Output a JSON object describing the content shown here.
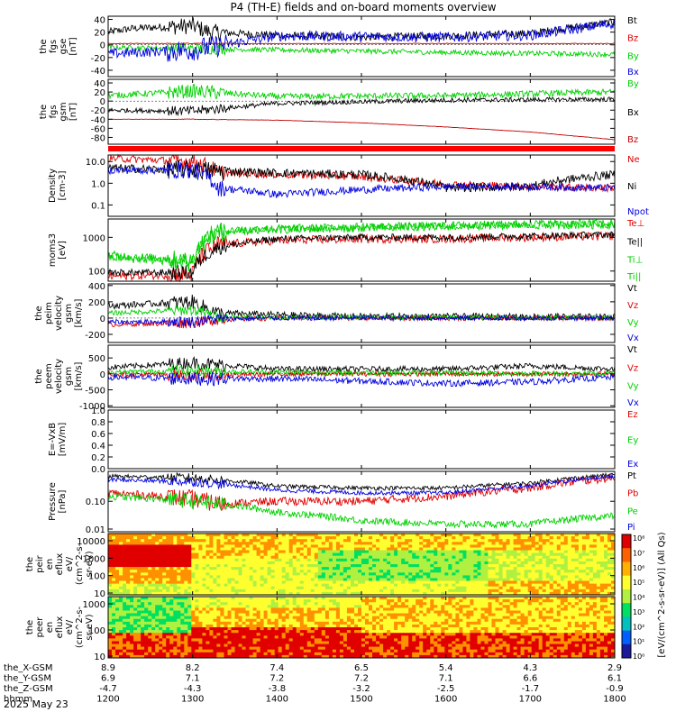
{
  "title": "P4 (TH-E) fields and on-board moments overview",
  "chart_data": [
    {
      "type": "line",
      "id": "fgs_gse",
      "ylabel": [
        "the",
        "fgs",
        "gse",
        "[nT]"
      ],
      "yticks": [
        "40",
        "20",
        "0",
        "-20",
        "-40"
      ],
      "ylim": [
        -50,
        45
      ],
      "legend": [
        {
          "name": "Bt",
          "color": "#000000"
        },
        {
          "name": "Bz",
          "color": "#e00000"
        },
        {
          "name": "By",
          "color": "#00d000"
        },
        {
          "name": "Bx",
          "color": "#0000e0"
        }
      ],
      "series": [
        {
          "name": "Bt",
          "x": [
            1200,
            1230,
            1300,
            1320,
            1400,
            1500,
            1600,
            1700,
            1730,
            1800
          ],
          "y": [
            20,
            26,
            30,
            20,
            15,
            12,
            14,
            18,
            24,
            36
          ],
          "noise": 6
        },
        {
          "name": "Bz",
          "x": [
            1200,
            1400,
            1600,
            1800
          ],
          "y": [
            2,
            2,
            2,
            2
          ],
          "noise": 0.5
        },
        {
          "name": "By",
          "x": [
            1200,
            1300,
            1400,
            1600,
            1800
          ],
          "y": [
            -4,
            -6,
            -8,
            -12,
            -15
          ],
          "noise": 4
        },
        {
          "name": "Bx",
          "x": [
            1200,
            1300,
            1400,
            1600,
            1700,
            1800
          ],
          "y": [
            -14,
            -8,
            14,
            12,
            15,
            34
          ],
          "noise": 8
        }
      ]
    },
    {
      "type": "line",
      "id": "fgs_gsm",
      "ylabel": [
        "the",
        "fgs",
        "gsm",
        "[nT]"
      ],
      "yticks": [
        "40",
        "20",
        "0",
        "-20",
        "-40",
        "-60",
        "-80"
      ],
      "ylim": [
        -95,
        48
      ],
      "legend": [
        {
          "name": "By",
          "color": "#00d000"
        },
        {
          "name": "Bx",
          "color": "#000000"
        },
        {
          "name": "Bz",
          "color": "#c00000"
        }
      ],
      "series": [
        {
          "name": "By",
          "x": [
            1200,
            1300,
            1400,
            1600,
            1800
          ],
          "y": [
            12,
            22,
            10,
            12,
            20
          ],
          "noise": 7
        },
        {
          "name": "Bx",
          "x": [
            1200,
            1300,
            1400,
            1600,
            1800
          ],
          "y": [
            -20,
            -22,
            -5,
            2,
            4
          ],
          "noise": 5
        },
        {
          "name": "Bz",
          "x": [
            1200,
            1300,
            1400,
            1500,
            1600,
            1700,
            1800
          ],
          "y": [
            -40,
            -40,
            -42,
            -48,
            -57,
            -68,
            -85
          ],
          "noise": 0.3
        }
      ]
    },
    {
      "type": "line",
      "id": "density",
      "ylabel": [
        "Density",
        "[cm-3]"
      ],
      "yscale": "log",
      "yticks": [
        "10.0",
        "1.0",
        "0.1"
      ],
      "ylim": [
        0.03,
        20
      ],
      "legend": [
        {
          "name": "Ne",
          "color": "#e00000"
        },
        {
          "name": "Ni",
          "color": "#000000"
        },
        {
          "name": "Npot",
          "color": "#0000e0"
        }
      ],
      "series": [
        {
          "name": "Ne",
          "x": [
            1200,
            1300,
            1330,
            1400,
            1500,
            1530,
            1600,
            1700,
            1800
          ],
          "y": [
            14,
            10,
            3,
            2.5,
            2.0,
            1.5,
            0.9,
            0.7,
            0.6
          ],
          "noise": 0.35
        },
        {
          "name": "Ni",
          "x": [
            1200,
            1310,
            1400,
            1500,
            1550,
            1600,
            1700,
            1800
          ],
          "y": [
            5,
            4,
            3,
            2.5,
            1.5,
            0.6,
            0.7,
            2.5
          ],
          "noise": 0.4
        },
        {
          "name": "Npot",
          "x": [
            1200,
            1300,
            1330,
            1400,
            1500,
            1600,
            1700,
            1800
          ],
          "y": [
            4,
            4,
            0.6,
            0.3,
            0.5,
            0.7,
            0.7,
            0.6
          ],
          "noise": 0.35
        }
      ]
    },
    {
      "type": "line",
      "id": "temperature",
      "ylabel": [
        "moms3",
        "[eV]"
      ],
      "yscale": "log",
      "yticks": [
        "1000",
        "100"
      ],
      "ylim": [
        50,
        3500
      ],
      "legend": [
        {
          "name": "Te⊥",
          "color": "#e00000"
        },
        {
          "name": "Te||",
          "color": "#000000"
        },
        {
          "name": "Ti⊥",
          "color": "#00d000"
        },
        {
          "name": "Ti||",
          "color": "#00d000"
        }
      ],
      "series": [
        {
          "name": "Te⊥",
          "x": [
            1200,
            1300,
            1330,
            1400,
            1500,
            1600,
            1700,
            1800
          ],
          "y": [
            70,
            80,
            600,
            800,
            900,
            900,
            1000,
            1100
          ],
          "noise": 0.25
        },
        {
          "name": "Te||",
          "x": [
            1200,
            1300,
            1330,
            1400,
            1500,
            1600,
            1700,
            1800
          ],
          "y": [
            90,
            90,
            500,
            900,
            1000,
            1000,
            1100,
            1200
          ],
          "noise": 0.2
        },
        {
          "name": "Ti⊥",
          "x": [
            1200,
            1300,
            1330,
            1400,
            1500,
            1600,
            1700,
            1800
          ],
          "y": [
            300,
            200,
            1500,
            1800,
            2000,
            2200,
            2500,
            2600
          ],
          "noise": 0.25
        },
        {
          "name": "Ti||",
          "x": [
            1200,
            1300,
            1330,
            1400,
            1500,
            1600,
            1700,
            1800
          ],
          "y": [
            250,
            180,
            1400,
            1700,
            1900,
            2100,
            2300,
            2400
          ],
          "noise": 0.25
        }
      ]
    },
    {
      "type": "line",
      "id": "peim_velocity",
      "ylabel": [
        "the",
        "peim",
        "velocity",
        "gsm",
        "[km/s]"
      ],
      "yticks": [
        "400",
        "200",
        "0",
        "-200"
      ],
      "ylim": [
        -300,
        420
      ],
      "legend": [
        {
          "name": "Vt",
          "color": "#000000"
        },
        {
          "name": "Vz",
          "color": "#e00000"
        },
        {
          "name": "Vy",
          "color": "#00d000"
        },
        {
          "name": "Vx",
          "color": "#0000e0"
        }
      ],
      "series": [
        {
          "name": "Vt",
          "x": [
            1200,
            1300,
            1330,
            1400,
            1500,
            1800
          ],
          "y": [
            150,
            200,
            60,
            40,
            20,
            15
          ],
          "noise": 40
        },
        {
          "name": "Vz",
          "x": [
            1200,
            1300,
            1330,
            1400,
            1800
          ],
          "y": [
            -80,
            -60,
            -20,
            0,
            0
          ],
          "noise": 30
        },
        {
          "name": "Vy",
          "x": [
            1200,
            1300,
            1330,
            1400,
            1800
          ],
          "y": [
            60,
            100,
            20,
            10,
            5
          ],
          "noise": 30
        },
        {
          "name": "Vx",
          "x": [
            1200,
            1300,
            1330,
            1400,
            1800
          ],
          "y": [
            -50,
            -40,
            -10,
            0,
            0
          ],
          "noise": 30
        }
      ]
    },
    {
      "type": "line",
      "id": "peem_velocity",
      "ylabel": [
        "the",
        "peem",
        "velocity",
        "gsm",
        "[km/s]"
      ],
      "yticks": [
        "500",
        "0",
        "-500",
        "-1000"
      ],
      "ylim": [
        -1050,
        900
      ],
      "legend": [
        {
          "name": "Vt",
          "color": "#000000"
        },
        {
          "name": "Vz",
          "color": "#e00000"
        },
        {
          "name": "Vy",
          "color": "#00d000"
        },
        {
          "name": "Vx",
          "color": "#0000e0"
        }
      ],
      "series": [
        {
          "name": "Vt",
          "x": [
            1200,
            1300,
            1400,
            1500,
            1600,
            1700,
            1800
          ],
          "y": [
            200,
            350,
            150,
            150,
            150,
            250,
            150
          ],
          "noise": 90
        },
        {
          "name": "Vz",
          "x": [
            1200,
            1300,
            1400,
            1800
          ],
          "y": [
            0,
            -50,
            0,
            0
          ],
          "noise": 80
        },
        {
          "name": "Vy",
          "x": [
            1200,
            1300,
            1400,
            1800
          ],
          "y": [
            50,
            100,
            50,
            0
          ],
          "noise": 80
        },
        {
          "name": "Vx",
          "x": [
            1200,
            1300,
            1400,
            1600,
            1700,
            1800
          ],
          "y": [
            -100,
            -150,
            -150,
            -300,
            -250,
            -100
          ],
          "noise": 100
        }
      ]
    },
    {
      "type": "line",
      "id": "efield",
      "ylabel": [
        "E=-VxB",
        "[mV/m]"
      ],
      "yticks": [
        "1.0",
        "0.8",
        "0.6",
        "0.4",
        "0.2",
        "0.0"
      ],
      "ylim": [
        0,
        1
      ],
      "legend": [
        {
          "name": "Ez",
          "color": "#e00000"
        },
        {
          "name": "Ey",
          "color": "#00d000"
        },
        {
          "name": "Ex",
          "color": "#0000e0"
        }
      ],
      "series": []
    },
    {
      "type": "line",
      "id": "pressure",
      "ylabel": [
        "Pressure",
        "[nPa]"
      ],
      "yscale": "log",
      "yticks": [
        "0.10",
        "0.01"
      ],
      "ylim": [
        0.008,
        1.2
      ],
      "legend": [
        {
          "name": "Pt",
          "color": "#000000"
        },
        {
          "name": "Pb",
          "color": "#e00000"
        },
        {
          "name": "Pe",
          "color": "#00d000"
        },
        {
          "name": "Pi",
          "color": "#0000e0"
        }
      ],
      "series": [
        {
          "name": "Pt",
          "x": [
            1200,
            1300,
            1400,
            1500,
            1600,
            1700,
            1800
          ],
          "y": [
            0.8,
            0.7,
            0.35,
            0.3,
            0.3,
            0.45,
            0.9
          ],
          "noise": 0.15
        },
        {
          "name": "Pb",
          "x": [
            1200,
            1300,
            1330,
            1400,
            1500,
            1600,
            1700,
            1800
          ],
          "y": [
            0.2,
            0.12,
            0.08,
            0.1,
            0.1,
            0.15,
            0.3,
            0.7
          ],
          "noise": 0.3
        },
        {
          "name": "Pe",
          "x": [
            1200,
            1300,
            1400,
            1500,
            1600,
            1700,
            1800
          ],
          "y": [
            0.15,
            0.1,
            0.04,
            0.02,
            0.015,
            0.015,
            0.03
          ],
          "noise": 0.25
        },
        {
          "name": "Pi",
          "x": [
            1200,
            1300,
            1400,
            1500,
            1600,
            1700,
            1800
          ],
          "y": [
            0.6,
            0.5,
            0.25,
            0.2,
            0.2,
            0.35,
            0.8
          ],
          "noise": 0.15
        }
      ]
    },
    {
      "type": "heatmap",
      "id": "peir_spec",
      "ylabel": [
        "the",
        "peir",
        "en",
        "eflux",
        "eV/",
        "(cm^2-s-",
        "sr-eV)"
      ],
      "yscale": "log",
      "yticks": [
        "10000",
        "1000",
        "100",
        "10"
      ]
    },
    {
      "type": "heatmap",
      "id": "peer_spec",
      "ylabel": [
        "the",
        "peer",
        "en",
        "eflux",
        "eV/",
        "(cm^2-s-",
        "sr-eV)"
      ],
      "yscale": "log",
      "yticks": [
        "1000",
        "100",
        "10"
      ]
    }
  ],
  "colorbar": {
    "label": "[eV/(cm^2-s-sr-eV)] (All Qs)",
    "ticks": [
      "10⁸",
      "10⁷",
      "10⁶",
      "10⁵",
      "10⁴",
      "10³",
      "10²",
      "10¹",
      "10⁰"
    ]
  },
  "xaxis": {
    "rows": [
      {
        "label": "the_X-GSM",
        "values": [
          "8.9",
          "8.2",
          "7.4",
          "6.5",
          "5.4",
          "4.3",
          "2.9"
        ]
      },
      {
        "label": "the_Y-GSM",
        "values": [
          "6.9",
          "7.1",
          "7.2",
          "7.2",
          "7.1",
          "6.6",
          "6.1"
        ]
      },
      {
        "label": "the_Z-GSM",
        "values": [
          "-4.7",
          "-4.3",
          "-3.8",
          "-3.2",
          "-2.5",
          "-1.7",
          "-0.9"
        ]
      },
      {
        "label": "hhmm",
        "values": [
          "1200",
          "1300",
          "1400",
          "1500",
          "1600",
          "1700",
          "1800"
        ]
      }
    ],
    "date": "2025 May 23"
  }
}
